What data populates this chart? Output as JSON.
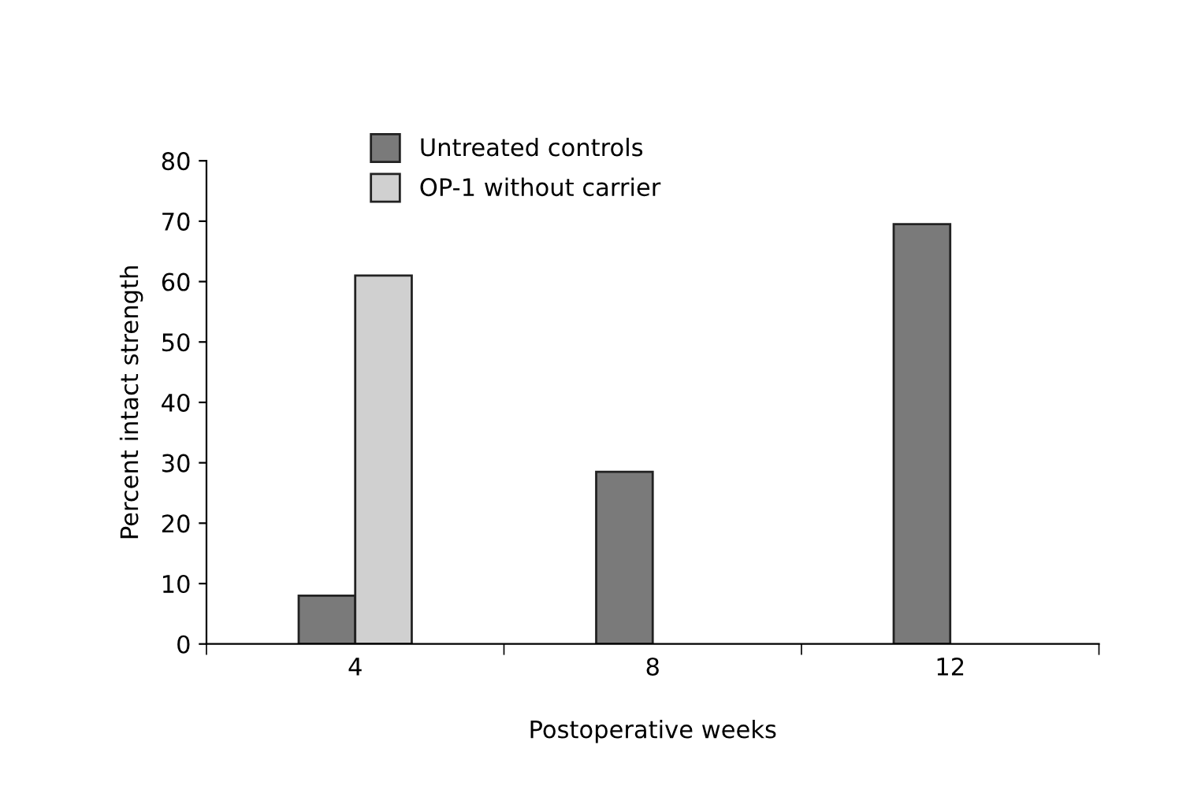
{
  "chart_data": {
    "type": "bar",
    "xlabel": "Postoperative weeks",
    "ylabel": "Percent intact strength",
    "categories": [
      "4",
      "8",
      "12"
    ],
    "series": [
      {
        "name": "Untreated controls",
        "color": "#7a7a7a",
        "values": [
          8,
          28.5,
          69.5
        ]
      },
      {
        "name": "OP-1 without carrier",
        "color": "#d0d0d0",
        "values": [
          61,
          null,
          null
        ]
      }
    ],
    "ylim": [
      0,
      80
    ],
    "yticks": [
      0,
      10,
      20,
      30,
      40,
      50,
      60,
      70,
      80
    ],
    "grid": false,
    "legend": "top left"
  }
}
